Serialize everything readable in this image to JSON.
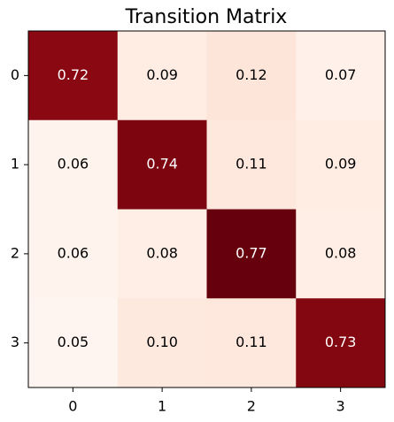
{
  "chart_data": {
    "type": "heatmap",
    "title": "Transition Matrix",
    "x_categories": [
      "0",
      "1",
      "2",
      "3"
    ],
    "y_categories": [
      "0",
      "1",
      "2",
      "3"
    ],
    "values": [
      [
        0.72,
        0.09,
        0.12,
        0.07
      ],
      [
        0.06,
        0.74,
        0.11,
        0.09
      ],
      [
        0.06,
        0.08,
        0.77,
        0.08
      ],
      [
        0.05,
        0.1,
        0.11,
        0.73
      ]
    ],
    "value_labels": [
      [
        "0.72",
        "0.09",
        "0.12",
        "0.07"
      ],
      [
        "0.06",
        "0.74",
        "0.11",
        "0.09"
      ],
      [
        "0.06",
        "0.08",
        "0.77",
        "0.08"
      ],
      [
        "0.05",
        "0.10",
        "0.11",
        "0.73"
      ]
    ],
    "colorscale": [
      "#fff5f0",
      "#fee0d2",
      "#fcbba1",
      "#fc9272",
      "#fb6a4a",
      "#ef3b2c",
      "#cb181d",
      "#a50f15",
      "#67000d"
    ]
  }
}
